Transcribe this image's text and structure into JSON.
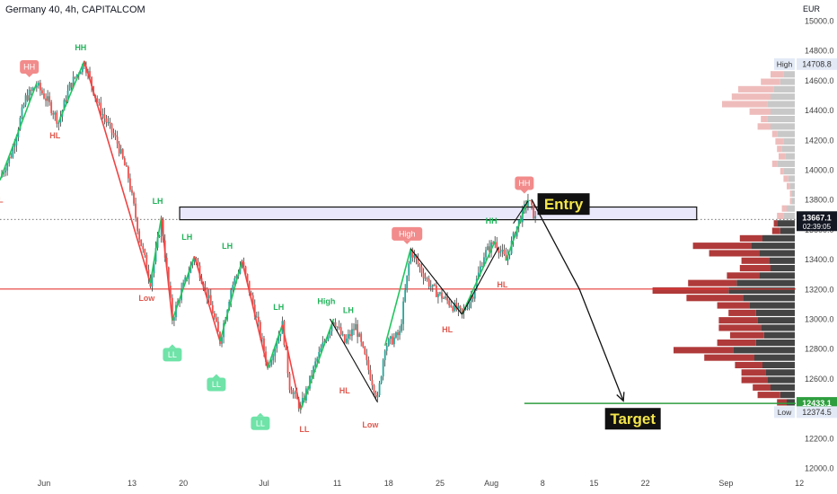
{
  "header": {
    "title": "Germany 40, 4h, CAPITALCOM",
    "currency": "EUR"
  },
  "colors": {
    "up": "#26a69a",
    "down": "#ef5350",
    "wick": "#555555",
    "swing_up": "#22c55e",
    "swing_down": "#ef4444",
    "red_line": "#e53935",
    "green_line": "#2e9e3e",
    "box_fill": "#e9e8fb",
    "target_bg": "#111111",
    "target_fg": "#f5e64a"
  },
  "chart_data": {
    "type": "candlestick",
    "symbol": "Germany 40",
    "timeframe": "4h",
    "broker": "CAPITALCOM",
    "ylim": [
      12000,
      15000
    ],
    "y_ticks": [
      12000,
      12200,
      12400,
      12600,
      12800,
      13000,
      13200,
      13400,
      13600,
      13800,
      14000,
      14200,
      14400,
      14600,
      14800,
      15000
    ],
    "y_tick_labels": [
      "12000.0",
      "12200.0",
      "12400.0",
      "12600.0",
      "12800.0",
      "13000.0",
      "13200.0",
      "13400.0",
      "13600.0",
      "13800.0",
      "14000.0",
      "14200.0",
      "14400.0",
      "14600.0",
      "14800.0",
      "15000.0"
    ],
    "x_labels": [
      {
        "label": "Jun",
        "t": 5
      },
      {
        "label": "13",
        "t": 17
      },
      {
        "label": "20",
        "t": 24
      },
      {
        "label": "Jul",
        "t": 35
      },
      {
        "label": "11",
        "t": 45
      },
      {
        "label": "18",
        "t": 52
      },
      {
        "label": "25",
        "t": 59
      },
      {
        "label": "Aug",
        "t": 66
      },
      {
        "label": "8",
        "t": 73
      },
      {
        "label": "15",
        "t": 80
      },
      {
        "label": "22",
        "t": 87
      },
      {
        "label": "Sep",
        "t": 98
      },
      {
        "label": "12",
        "t": 108
      }
    ],
    "x_range": [
      -1,
      107.5
    ],
    "price_path": [
      {
        "t": -1,
        "v": 13950
      },
      {
        "t": 0.5,
        "v": 14100
      },
      {
        "t": 2.5,
        "v": 14480
      },
      {
        "t": 4,
        "v": 14570
      },
      {
        "t": 5.5,
        "v": 14460
      },
      {
        "t": 7,
        "v": 14320
      },
      {
        "t": 8.5,
        "v": 14560
      },
      {
        "t": 10.5,
        "v": 14720
      },
      {
        "t": 12.5,
        "v": 14420
      },
      {
        "t": 15,
        "v": 14180
      },
      {
        "t": 16.5,
        "v": 13950
      },
      {
        "t": 18,
        "v": 13550
      },
      {
        "t": 19.5,
        "v": 13250
      },
      {
        "t": 21,
        "v": 13650
      },
      {
        "t": 22.5,
        "v": 13000
      },
      {
        "t": 23.5,
        "v": 13150
      },
      {
        "t": 25.5,
        "v": 13420
      },
      {
        "t": 28,
        "v": 13050
      },
      {
        "t": 29,
        "v": 12850
      },
      {
        "t": 30.5,
        "v": 13200
      },
      {
        "t": 32,
        "v": 13380
      },
      {
        "t": 34,
        "v": 13000
      },
      {
        "t": 35.5,
        "v": 12680
      },
      {
        "t": 37.5,
        "v": 12960
      },
      {
        "t": 38.5,
        "v": 12550
      },
      {
        "t": 40,
        "v": 12400
      },
      {
        "t": 42,
        "v": 12700
      },
      {
        "t": 44.5,
        "v": 13000
      },
      {
        "t": 46,
        "v": 12840
      },
      {
        "t": 47.5,
        "v": 12950
      },
      {
        "t": 49,
        "v": 12700
      },
      {
        "t": 50.5,
        "v": 12460
      },
      {
        "t": 51.5,
        "v": 12820
      },
      {
        "t": 53.5,
        "v": 12900
      },
      {
        "t": 55,
        "v": 13460
      },
      {
        "t": 56.5,
        "v": 13320
      },
      {
        "t": 58,
        "v": 13200
      },
      {
        "t": 60,
        "v": 13120
      },
      {
        "t": 62,
        "v": 13030
      },
      {
        "t": 63.5,
        "v": 13170
      },
      {
        "t": 65,
        "v": 13430
      },
      {
        "t": 66.5,
        "v": 13520
      },
      {
        "t": 68,
        "v": 13390
      },
      {
        "t": 69.5,
        "v": 13620
      },
      {
        "t": 71,
        "v": 13800
      },
      {
        "t": 72,
        "v": 13670
      }
    ],
    "swing_lines": [
      {
        "kind": "up",
        "points": [
          [
            -1,
            13930
          ],
          [
            4,
            14580
          ]
        ]
      },
      {
        "kind": "up",
        "points": [
          [
            7,
            14320
          ],
          [
            10.5,
            14730
          ]
        ]
      },
      {
        "kind": "down",
        "points": [
          [
            10.5,
            14730
          ],
          [
            19.5,
            13240
          ]
        ]
      },
      {
        "kind": "up",
        "points": [
          [
            19.5,
            13240
          ],
          [
            21,
            13680
          ]
        ]
      },
      {
        "kind": "down",
        "points": [
          [
            21,
            13680
          ],
          [
            22.5,
            12990
          ]
        ]
      },
      {
        "kind": "up",
        "points": [
          [
            22.5,
            12990
          ],
          [
            25.5,
            13420
          ]
        ]
      },
      {
        "kind": "down",
        "points": [
          [
            25.5,
            13420
          ],
          [
            29,
            12850
          ]
        ]
      },
      {
        "kind": "up",
        "points": [
          [
            29,
            12850
          ],
          [
            32,
            13390
          ]
        ]
      },
      {
        "kind": "down",
        "points": [
          [
            32,
            13390
          ],
          [
            35.5,
            12670
          ]
        ]
      },
      {
        "kind": "up",
        "points": [
          [
            35.5,
            12670
          ],
          [
            37.5,
            12960
          ]
        ]
      },
      {
        "kind": "down",
        "points": [
          [
            37.5,
            12960
          ],
          [
            40,
            12390
          ]
        ]
      },
      {
        "kind": "up",
        "points": [
          [
            40,
            12390
          ],
          [
            44.5,
            13000
          ]
        ]
      },
      {
        "kind": "up",
        "points": [
          [
            51.5,
            12820
          ],
          [
            55,
            13470
          ]
        ]
      },
      {
        "kind": "up",
        "points": [
          [
            62,
            13030
          ],
          [
            66.5,
            13520
          ]
        ]
      },
      {
        "kind": "up",
        "points": [
          [
            68,
            13390
          ],
          [
            71,
            13800
          ]
        ]
      }
    ],
    "black_lines": [
      [
        [
          44,
          13000
        ],
        [
          50.5,
          12440
        ]
      ],
      [
        [
          55,
          13470
        ],
        [
          62,
          13030
        ]
      ],
      [
        [
          62,
          13030
        ],
        [
          67,
          13480
        ]
      ],
      [
        [
          69,
          13640
        ],
        [
          71,
          13790
        ]
      ]
    ],
    "pivot_labels": [
      {
        "text": "HH",
        "t": 3,
        "v": 14690,
        "style": "badge-red"
      },
      {
        "text": "HH",
        "t": 10,
        "v": 14800,
        "style": "text-green"
      },
      {
        "text": "HL",
        "t": 6.5,
        "v": 14210,
        "style": "text-red"
      },
      {
        "text": "LH",
        "t": 20.5,
        "v": 13770,
        "style": "text-green"
      },
      {
        "text": "Low",
        "t": 19,
        "v": 13120,
        "style": "text-red"
      },
      {
        "text": "LH",
        "t": 24.5,
        "v": 13530,
        "style": "text-green"
      },
      {
        "text": "LL",
        "t": 22.5,
        "v": 12760,
        "style": "badge-green"
      },
      {
        "text": "LH",
        "t": 30,
        "v": 13470,
        "style": "text-green"
      },
      {
        "text": "LL",
        "t": 28.5,
        "v": 12560,
        "style": "badge-green"
      },
      {
        "text": "LH",
        "t": 37,
        "v": 13060,
        "style": "text-green"
      },
      {
        "text": "LL",
        "t": 34.5,
        "v": 12300,
        "style": "badge-green"
      },
      {
        "text": "High",
        "t": 43.5,
        "v": 13100,
        "style": "text-green"
      },
      {
        "text": "LH",
        "t": 46.5,
        "v": 13040,
        "style": "text-green"
      },
      {
        "text": "LL",
        "t": 40.5,
        "v": 12240,
        "style": "text-red"
      },
      {
        "text": "HL",
        "t": 46,
        "v": 12500,
        "style": "text-red"
      },
      {
        "text": "Low",
        "t": 49.5,
        "v": 12270,
        "style": "text-red"
      },
      {
        "text": "High",
        "t": 54.5,
        "v": 13570,
        "style": "badge-red"
      },
      {
        "text": "HL",
        "t": 60,
        "v": 12910,
        "style": "text-red"
      },
      {
        "text": "HH",
        "t": 66,
        "v": 13640,
        "style": "text-green"
      },
      {
        "text": "HL",
        "t": 67.5,
        "v": 13210,
        "style": "text-red"
      },
      {
        "text": "HH",
        "t": 70.5,
        "v": 13910,
        "style": "badge-red"
      },
      {
        "text": "L",
        "t": -0.9,
        "v": 13780,
        "style": "text-red"
      }
    ],
    "supply_zone": {
      "t0": 23.5,
      "t1": 94,
      "v_top": 13750,
      "v_bottom": 13665
    },
    "red_horizontal": 13200,
    "dashed_level": 13667.1,
    "target_level": 12433.1,
    "target_line_t0": 70.5,
    "projection_path": [
      [
        71.5,
        13800
      ],
      [
        78,
        13200
      ],
      [
        84,
        12450
      ]
    ],
    "entry_label": "Entry",
    "target_label": "Target",
    "price_badges": [
      {
        "value": "13667.1",
        "sub": "02:39:05",
        "kind": "current"
      },
      {
        "value": "12433.1",
        "kind": "green"
      },
      {
        "value": "14708.8",
        "prefix": "High",
        "kind": "light"
      },
      {
        "value": "12374.5",
        "prefix": "Low",
        "kind": "light"
      }
    ],
    "high_low": {
      "high": 14708.8,
      "low": 12374.5
    },
    "volume_profile": {
      "rows": [
        {
          "v": 14640,
          "buy": 14,
          "sell": 16
        },
        {
          "v": 14590,
          "buy": 18,
          "sell": 24
        },
        {
          "v": 14540,
          "buy": 26,
          "sell": 44
        },
        {
          "v": 14490,
          "buy": 30,
          "sell": 48
        },
        {
          "v": 14440,
          "buy": 34,
          "sell": 56
        },
        {
          "v": 14390,
          "buy": 30,
          "sell": 26
        },
        {
          "v": 14340,
          "buy": 34,
          "sell": 8
        },
        {
          "v": 14290,
          "buy": 30,
          "sell": 16
        },
        {
          "v": 14240,
          "buy": 22,
          "sell": 6
        },
        {
          "v": 14190,
          "buy": 14,
          "sell": 10
        },
        {
          "v": 14140,
          "buy": 16,
          "sell": 6
        },
        {
          "v": 14090,
          "buy": 12,
          "sell": 8
        },
        {
          "v": 14040,
          "buy": 22,
          "sell": 6
        },
        {
          "v": 13990,
          "buy": 14,
          "sell": 4
        },
        {
          "v": 13940,
          "buy": 8,
          "sell": 6
        },
        {
          "v": 13890,
          "buy": 6,
          "sell": 4
        },
        {
          "v": 13840,
          "buy": 4,
          "sell": 2
        },
        {
          "v": 13790,
          "buy": 4,
          "sell": 2
        },
        {
          "v": 13740,
          "buy": 10,
          "sell": 6
        },
        {
          "v": 13690,
          "buy": 14,
          "sell": 8
        },
        {
          "v": 13640,
          "buy": 22,
          "sell": 4
        },
        {
          "v": 13590,
          "buy": 18,
          "sell": 10
        },
        {
          "v": 13540,
          "buy": 40,
          "sell": 28
        },
        {
          "v": 13490,
          "buy": 54,
          "sell": 72
        },
        {
          "v": 13440,
          "buy": 44,
          "sell": 62
        },
        {
          "v": 13390,
          "buy": 32,
          "sell": 34
        },
        {
          "v": 13340,
          "buy": 30,
          "sell": 38
        },
        {
          "v": 13290,
          "buy": 44,
          "sell": 40
        },
        {
          "v": 13240,
          "buy": 72,
          "sell": 60
        },
        {
          "v": 13190,
          "buy": 82,
          "sell": 94
        },
        {
          "v": 13140,
          "buy": 64,
          "sell": 70
        },
        {
          "v": 13090,
          "buy": 56,
          "sell": 40
        },
        {
          "v": 13040,
          "buy": 48,
          "sell": 34
        },
        {
          "v": 12990,
          "buy": 46,
          "sell": 48
        },
        {
          "v": 12940,
          "buy": 42,
          "sell": 52
        },
        {
          "v": 12890,
          "buy": 38,
          "sell": 42
        },
        {
          "v": 12840,
          "buy": 48,
          "sell": 48
        },
        {
          "v": 12790,
          "buy": 76,
          "sell": 74
        },
        {
          "v": 12740,
          "buy": 50,
          "sell": 62
        },
        {
          "v": 12690,
          "buy": 40,
          "sell": 34
        },
        {
          "v": 12640,
          "buy": 36,
          "sell": 30
        },
        {
          "v": 12590,
          "buy": 34,
          "sell": 32
        },
        {
          "v": 12540,
          "buy": 30,
          "sell": 22
        },
        {
          "v": 12490,
          "buy": 18,
          "sell": 28
        },
        {
          "v": 12440,
          "buy": 10,
          "sell": 12
        },
        {
          "v": 12390,
          "buy": 6,
          "sell": 6
        }
      ]
    }
  }
}
